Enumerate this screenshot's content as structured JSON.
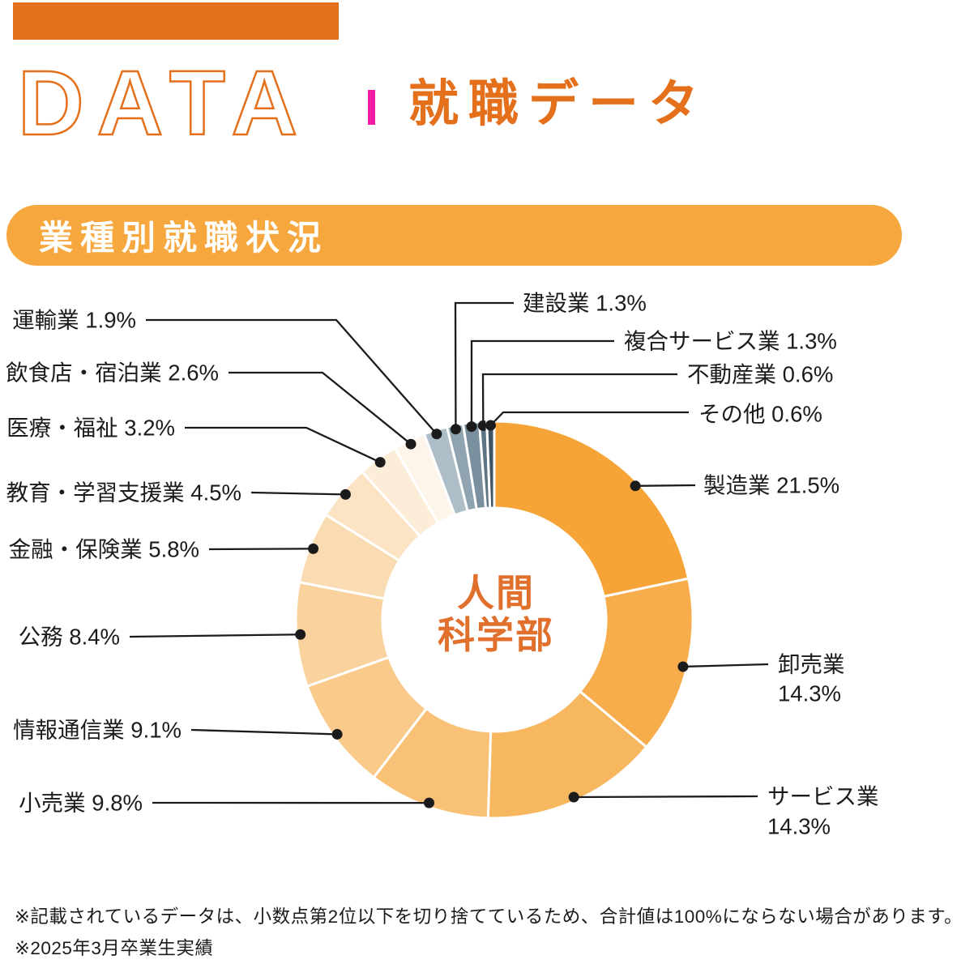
{
  "header": {
    "logo_text": "DATA",
    "title": "就職データ"
  },
  "banner": {
    "title": "業種別就職状況"
  },
  "chart_data": {
    "type": "pie",
    "subtype": "donut",
    "title": "業種別就職状況",
    "center_label": [
      "人間",
      "科学部"
    ],
    "unit": "%",
    "direction": "clockwise-from-top",
    "segments": [
      {
        "key": "manufacturing",
        "label": "製造業",
        "value": 21.5,
        "color": "#F6A437"
      },
      {
        "key": "wholesale",
        "label": "卸売業",
        "value": 14.3,
        "color": "#F7AD4B"
      },
      {
        "key": "service",
        "label": "サービス業",
        "value": 14.3,
        "color": "#F7B75F"
      },
      {
        "key": "retail",
        "label": "小売業",
        "value": 9.8,
        "color": "#F8C176"
      },
      {
        "key": "info_com",
        "label": "情報通信業",
        "value": 9.1,
        "color": "#F9CA89"
      },
      {
        "key": "public_service",
        "label": "公務",
        "value": 8.4,
        "color": "#F9D29D"
      },
      {
        "key": "finance",
        "label": "金融・保険業",
        "value": 5.8,
        "color": "#FADCB2"
      },
      {
        "key": "education",
        "label": "教育・学習支援業",
        "value": 4.5,
        "color": "#FBE3C4"
      },
      {
        "key": "medical",
        "label": "医療・福祉",
        "value": 3.2,
        "color": "#FCEDD9"
      },
      {
        "key": "food_lodging",
        "label": "飲食店・宿泊業",
        "value": 2.6,
        "color": "#FDF5E9"
      },
      {
        "key": "transport",
        "label": "運輸業",
        "value": 1.9,
        "color": "#AEBEC9"
      },
      {
        "key": "construction",
        "label": "建設業",
        "value": 1.3,
        "color": "#8FA3B0"
      },
      {
        "key": "combined_service",
        "label": "複合サービス業",
        "value": 1.3,
        "color": "#7A909E"
      },
      {
        "key": "real_estate",
        "label": "不動産業",
        "value": 0.6,
        "color": "#5E7585"
      },
      {
        "key": "other",
        "label": "その他",
        "value": 0.6,
        "color": "#3E5568"
      }
    ]
  },
  "footnotes": [
    "※記載されているデータは、小数点第2位以下を切り捨てているため、合計値は100%にならない場合があります。",
    "※2025年3月卒業生実績"
  ],
  "colors": {
    "accent_orange": "#E4701B",
    "banner_orange": "#F6A73E",
    "divider_magenta": "#F01CA4",
    "center_text_orange": "#E0702C",
    "label_text": "#1B1B1B",
    "leader_line": "#1B1B1B",
    "slice_gap_white": "#FFFFFF"
  }
}
